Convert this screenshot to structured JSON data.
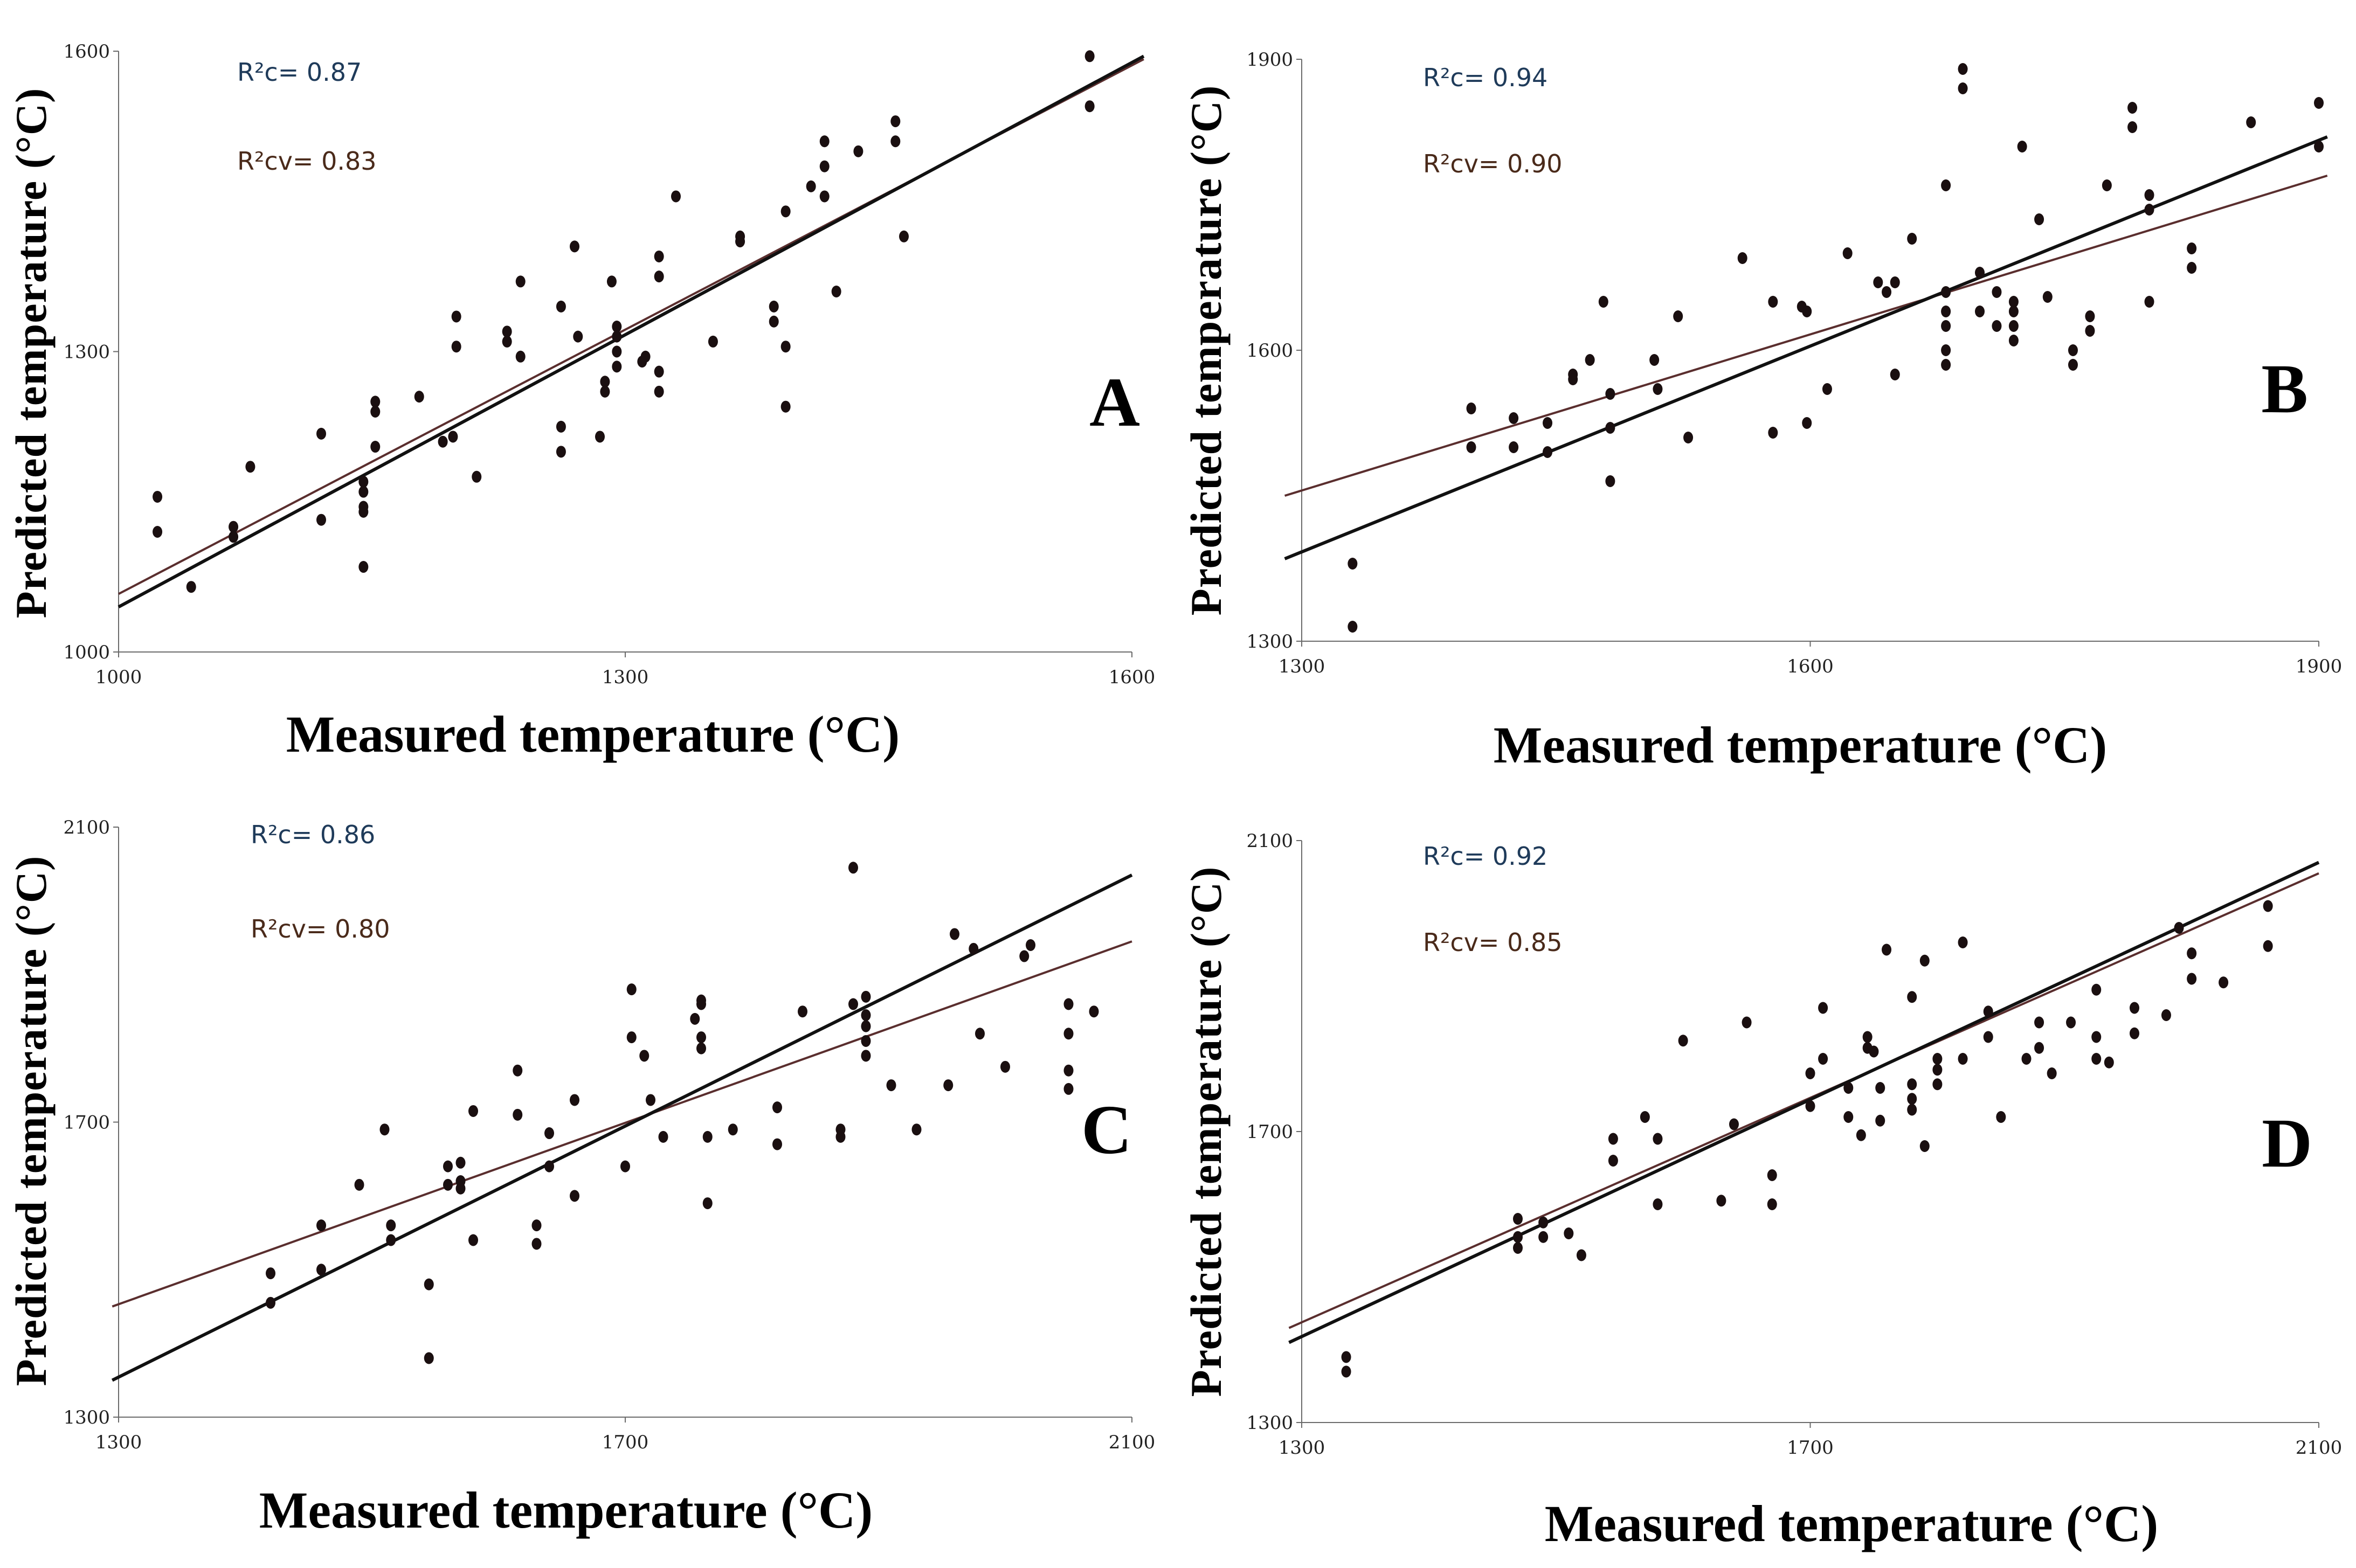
{
  "xlabel": "Measured temperature (°C)",
  "ylabel": "Predicted temperature (°C)",
  "colors": {
    "point": "#1a0f10",
    "fit_line": "#111111",
    "cv_line": "#5a2e2e",
    "axis": "#6b6b6b"
  },
  "chart_data": [
    {
      "type": "scatter",
      "letter": "A",
      "xlabel": "Measured temperature (°C)",
      "ylabel": "Predicted temperature (°C)",
      "xlim": [
        1000,
        1600
      ],
      "ylim": [
        1000,
        1600
      ],
      "xticks": [
        "1000",
        "1300",
        "1600"
      ],
      "yticks": [
        "1000",
        "1300",
        "1600"
      ],
      "r2c_label": "R²c= 0.87",
      "r2cv_label": "R²cv= 0.83",
      "fit_line": [
        [
          1000,
          1045
        ],
        [
          1607,
          1595
        ]
      ],
      "cv_line": [
        [
          1000,
          1058
        ],
        [
          1607,
          1592
        ]
      ],
      "points": [
        [
          1023,
          1155
        ],
        [
          1023,
          1120
        ],
        [
          1043,
          1065
        ],
        [
          1068,
          1115
        ],
        [
          1068,
          1125
        ],
        [
          1078,
          1185
        ],
        [
          1120,
          1218
        ],
        [
          1120,
          1132
        ],
        [
          1145,
          1170
        ],
        [
          1145,
          1160
        ],
        [
          1145,
          1145
        ],
        [
          1145,
          1140
        ],
        [
          1145,
          1085
        ],
        [
          1152,
          1205
        ],
        [
          1152,
          1240
        ],
        [
          1152,
          1250
        ],
        [
          1178,
          1255
        ],
        [
          1192,
          1210
        ],
        [
          1198,
          1215
        ],
        [
          1200,
          1335
        ],
        [
          1200,
          1305
        ],
        [
          1212,
          1175
        ],
        [
          1230,
          1320
        ],
        [
          1230,
          1310
        ],
        [
          1238,
          1370
        ],
        [
          1238,
          1295
        ],
        [
          1262,
          1345
        ],
        [
          1262,
          1225
        ],
        [
          1262,
          1200
        ],
        [
          1270,
          1405
        ],
        [
          1272,
          1315
        ],
        [
          1285,
          1215
        ],
        [
          1288,
          1270
        ],
        [
          1288,
          1260
        ],
        [
          1292,
          1370
        ],
        [
          1295,
          1325
        ],
        [
          1295,
          1315
        ],
        [
          1295,
          1300
        ],
        [
          1295,
          1285
        ],
        [
          1310,
          1290
        ],
        [
          1312,
          1295
        ],
        [
          1320,
          1395
        ],
        [
          1320,
          1375
        ],
        [
          1320,
          1280
        ],
        [
          1320,
          1260
        ],
        [
          1330,
          1455
        ],
        [
          1352,
          1310
        ],
        [
          1368,
          1415
        ],
        [
          1368,
          1410
        ],
        [
          1388,
          1345
        ],
        [
          1388,
          1330
        ],
        [
          1395,
          1440
        ],
        [
          1395,
          1305
        ],
        [
          1395,
          1245
        ],
        [
          1410,
          1465
        ],
        [
          1418,
          1510
        ],
        [
          1418,
          1485
        ],
        [
          1418,
          1455
        ],
        [
          1425,
          1360
        ],
        [
          1438,
          1500
        ],
        [
          1460,
          1530
        ],
        [
          1460,
          1510
        ],
        [
          1465,
          1415
        ],
        [
          1575,
          1595
        ],
        [
          1575,
          1545
        ]
      ]
    },
    {
      "type": "scatter",
      "letter": "B",
      "xlabel": "Measured temperature (°C)",
      "ylabel": "Predicted temperature (°C)",
      "xlim": [
        1300,
        1900
      ],
      "ylim": [
        1300,
        1900
      ],
      "xticks": [
        "1300",
        "1600",
        "1900"
      ],
      "yticks": [
        "1300",
        "1600",
        "1900"
      ],
      "r2c_label": "R²c= 0.94",
      "r2cv_label": "R²cv= 0.90",
      "fit_line": [
        [
          1290,
          1385
        ],
        [
          1905,
          1820
        ]
      ],
      "cv_line": [
        [
          1290,
          1450
        ],
        [
          1905,
          1780
        ]
      ],
      "points": [
        [
          1330,
          1380
        ],
        [
          1330,
          1315
        ],
        [
          1400,
          1540
        ],
        [
          1400,
          1500
        ],
        [
          1425,
          1530
        ],
        [
          1425,
          1500
        ],
        [
          1445,
          1525
        ],
        [
          1445,
          1495
        ],
        [
          1460,
          1575
        ],
        [
          1460,
          1570
        ],
        [
          1470,
          1590
        ],
        [
          1478,
          1650
        ],
        [
          1482,
          1555
        ],
        [
          1482,
          1520
        ],
        [
          1482,
          1465
        ],
        [
          1508,
          1590
        ],
        [
          1510,
          1560
        ],
        [
          1522,
          1635
        ],
        [
          1528,
          1510
        ],
        [
          1560,
          1695
        ],
        [
          1578,
          1650
        ],
        [
          1578,
          1515
        ],
        [
          1595,
          1645
        ],
        [
          1598,
          1640
        ],
        [
          1598,
          1525
        ],
        [
          1610,
          1560
        ],
        [
          1622,
          1700
        ],
        [
          1640,
          1670
        ],
        [
          1645,
          1660
        ],
        [
          1650,
          1670
        ],
        [
          1650,
          1575
        ],
        [
          1660,
          1715
        ],
        [
          1680,
          1770
        ],
        [
          1680,
          1660
        ],
        [
          1680,
          1640
        ],
        [
          1680,
          1625
        ],
        [
          1680,
          1600
        ],
        [
          1680,
          1585
        ],
        [
          1690,
          1890
        ],
        [
          1690,
          1870
        ],
        [
          1700,
          1680
        ],
        [
          1700,
          1640
        ],
        [
          1710,
          1660
        ],
        [
          1710,
          1625
        ],
        [
          1720,
          1650
        ],
        [
          1720,
          1640
        ],
        [
          1720,
          1625
        ],
        [
          1720,
          1610
        ],
        [
          1725,
          1810
        ],
        [
          1735,
          1735
        ],
        [
          1740,
          1655
        ],
        [
          1755,
          1600
        ],
        [
          1755,
          1585
        ],
        [
          1765,
          1635
        ],
        [
          1765,
          1620
        ],
        [
          1775,
          1770
        ],
        [
          1790,
          1850
        ],
        [
          1790,
          1830
        ],
        [
          1800,
          1760
        ],
        [
          1800,
          1745
        ],
        [
          1800,
          1650
        ],
        [
          1825,
          1705
        ],
        [
          1825,
          1685
        ],
        [
          1860,
          1835
        ],
        [
          1900,
          1855
        ],
        [
          1900,
          1810
        ]
      ]
    },
    {
      "type": "scatter",
      "letter": "C",
      "xlabel": "Measured temperature (°C)",
      "ylabel": "Predicted temperature (°C)",
      "xlim": [
        1300,
        2100
      ],
      "ylim": [
        1300,
        2100
      ],
      "xticks": [
        "1300",
        "1700",
        "2100"
      ],
      "yticks": [
        "1300",
        "1700",
        "2100"
      ],
      "r2c_label": "R²c= 0.86",
      "r2cv_label": "R²cv= 0.80",
      "fit_line": [
        [
          1295,
          1350
        ],
        [
          2100,
          2035
        ]
      ],
      "cv_line": [
        [
          1295,
          1450
        ],
        [
          2100,
          1945
        ]
      ],
      "points": [
        [
          1420,
          1495
        ],
        [
          1420,
          1455
        ],
        [
          1460,
          1560
        ],
        [
          1460,
          1500
        ],
        [
          1490,
          1615
        ],
        [
          1510,
          1690
        ],
        [
          1515,
          1560
        ],
        [
          1515,
          1540
        ],
        [
          1545,
          1480
        ],
        [
          1545,
          1380
        ],
        [
          1560,
          1640
        ],
        [
          1560,
          1615
        ],
        [
          1570,
          1645
        ],
        [
          1570,
          1620
        ],
        [
          1570,
          1610
        ],
        [
          1580,
          1715
        ],
        [
          1580,
          1540
        ],
        [
          1615,
          1770
        ],
        [
          1615,
          1710
        ],
        [
          1630,
          1560
        ],
        [
          1630,
          1535
        ],
        [
          1640,
          1685
        ],
        [
          1640,
          1640
        ],
        [
          1660,
          1730
        ],
        [
          1660,
          1600
        ],
        [
          1700,
          1640
        ],
        [
          1705,
          1880
        ],
        [
          1705,
          1815
        ],
        [
          1715,
          1790
        ],
        [
          1720,
          1730
        ],
        [
          1730,
          1680
        ],
        [
          1755,
          1840
        ],
        [
          1760,
          1865
        ],
        [
          1760,
          1860
        ],
        [
          1760,
          1815
        ],
        [
          1760,
          1800
        ],
        [
          1765,
          1590
        ],
        [
          1765,
          1680
        ],
        [
          1785,
          1690
        ],
        [
          1820,
          1720
        ],
        [
          1820,
          1670
        ],
        [
          1840,
          1850
        ],
        [
          1870,
          1690
        ],
        [
          1870,
          1680
        ],
        [
          1880,
          2045
        ],
        [
          1880,
          1860
        ],
        [
          1890,
          1870
        ],
        [
          1890,
          1845
        ],
        [
          1890,
          1830
        ],
        [
          1890,
          1810
        ],
        [
          1890,
          1790
        ],
        [
          1910,
          1750
        ],
        [
          1930,
          1690
        ],
        [
          1955,
          1750
        ],
        [
          1960,
          1955
        ],
        [
          1975,
          1935
        ],
        [
          1980,
          1820
        ],
        [
          2000,
          1775
        ],
        [
          2015,
          1925
        ],
        [
          2020,
          1940
        ],
        [
          2050,
          1860
        ],
        [
          2050,
          1820
        ],
        [
          2050,
          1770
        ],
        [
          2050,
          1745
        ],
        [
          2070,
          1850
        ]
      ]
    },
    {
      "type": "scatter",
      "letter": "D",
      "xlabel": "Measured temperature (°C)",
      "ylabel": "Predicted temperature (°C)",
      "xlim": [
        1300,
        2100
      ],
      "ylim": [
        1300,
        2100
      ],
      "xticks": [
        "1300",
        "1700",
        "2100"
      ],
      "yticks": [
        "1300",
        "1700",
        "2100"
      ],
      "r2c_label": "R²c= 0.92",
      "r2cv_label": "R²cv= 0.85",
      "fit_line": [
        [
          1290,
          1410
        ],
        [
          2100,
          2070
        ]
      ],
      "cv_line": [
        [
          1290,
          1430
        ],
        [
          2100,
          2055
        ]
      ],
      "points": [
        [
          1335,
          1390
        ],
        [
          1335,
          1370
        ],
        [
          1470,
          1580
        ],
        [
          1470,
          1555
        ],
        [
          1470,
          1540
        ],
        [
          1490,
          1575
        ],
        [
          1490,
          1555
        ],
        [
          1510,
          1560
        ],
        [
          1520,
          1530
        ],
        [
          1545,
          1690
        ],
        [
          1545,
          1660
        ],
        [
          1570,
          1720
        ],
        [
          1580,
          1690
        ],
        [
          1580,
          1600
        ],
        [
          1600,
          1825
        ],
        [
          1630,
          1605
        ],
        [
          1640,
          1710
        ],
        [
          1650,
          1850
        ],
        [
          1670,
          1640
        ],
        [
          1670,
          1600
        ],
        [
          1700,
          1780
        ],
        [
          1700,
          1735
        ],
        [
          1710,
          1870
        ],
        [
          1710,
          1800
        ],
        [
          1730,
          1760
        ],
        [
          1730,
          1720
        ],
        [
          1740,
          1695
        ],
        [
          1745,
          1830
        ],
        [
          1745,
          1815
        ],
        [
          1750,
          1810
        ],
        [
          1755,
          1760
        ],
        [
          1755,
          1715
        ],
        [
          1760,
          1950
        ],
        [
          1780,
          1885
        ],
        [
          1780,
          1765
        ],
        [
          1780,
          1745
        ],
        [
          1780,
          1730
        ],
        [
          1790,
          1680
        ],
        [
          1790,
          1935
        ],
        [
          1800,
          1800
        ],
        [
          1800,
          1785
        ],
        [
          1800,
          1765
        ],
        [
          1820,
          1960
        ],
        [
          1820,
          1800
        ],
        [
          1840,
          1865
        ],
        [
          1840,
          1830
        ],
        [
          1850,
          1720
        ],
        [
          1870,
          1800
        ],
        [
          1880,
          1850
        ],
        [
          1880,
          1815
        ],
        [
          1890,
          1780
        ],
        [
          1905,
          1850
        ],
        [
          1925,
          1895
        ],
        [
          1925,
          1830
        ],
        [
          1925,
          1800
        ],
        [
          1935,
          1795
        ],
        [
          1955,
          1870
        ],
        [
          1955,
          1835
        ],
        [
          1980,
          1860
        ],
        [
          1990,
          1980
        ],
        [
          2000,
          1945
        ],
        [
          2000,
          1910
        ],
        [
          2025,
          1905
        ],
        [
          2060,
          2010
        ],
        [
          2060,
          1955
        ]
      ]
    }
  ]
}
